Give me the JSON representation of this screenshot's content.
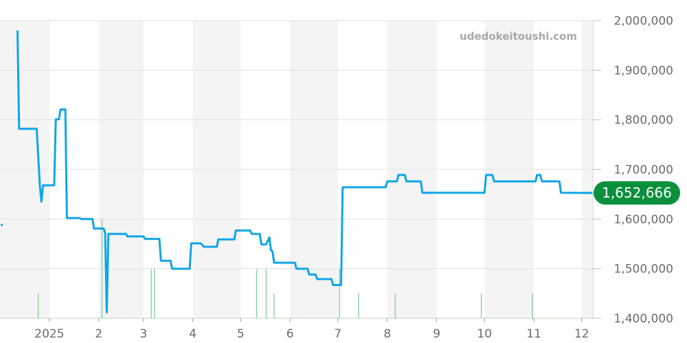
{
  "watermark": "udedokeitoushi.com",
  "chart_data": {
    "type": "line",
    "title": "",
    "xlabel": "",
    "ylabel": "",
    "ylim": [
      1400000,
      2000000
    ],
    "xlim": [
      "2024-12-01",
      "2025-12-08"
    ],
    "grid": true,
    "y_axis_side": "right",
    "y_ticks": [
      "1,400,000",
      "1,500,000",
      "1,600,000",
      "1,700,000",
      "1,800,000",
      "1,900,000",
      "2,000,000"
    ],
    "y_tick_values": [
      1400000,
      1500000,
      1600000,
      1700000,
      1800000,
      1900000,
      2000000
    ],
    "x_ticks": [
      {
        "date": "2025-01-01",
        "label": "2025"
      },
      {
        "date": "2025-02-01",
        "label": "2"
      },
      {
        "date": "2025-03-01",
        "label": "3"
      },
      {
        "date": "2025-04-01",
        "label": "4"
      },
      {
        "date": "2025-05-01",
        "label": "5"
      },
      {
        "date": "2025-06-01",
        "label": "6"
      },
      {
        "date": "2025-07-01",
        "label": "7"
      },
      {
        "date": "2025-08-01",
        "label": "8"
      },
      {
        "date": "2025-09-01",
        "label": "9"
      },
      {
        "date": "2025-10-01",
        "label": "10"
      },
      {
        "date": "2025-11-01",
        "label": "11"
      },
      {
        "date": "2025-12-01",
        "label": "12"
      }
    ],
    "alternating_month_shading": true,
    "colors": {
      "line": "#0ea5e9",
      "volume": "#8fd19e",
      "badge": "#0a8f3c",
      "shade": "#f4f4f4",
      "grid": "#e0e0e0"
    },
    "current_value": 1652666,
    "current_value_label": "1,652,666",
    "isolated_point": {
      "date": "2024-12-01",
      "value": 1588000
    },
    "series": [
      {
        "points": [
          [
            "2024-12-12",
            1980000
          ],
          [
            "2024-12-13",
            1782000
          ],
          [
            "2024-12-24",
            1782000
          ],
          [
            "2024-12-26",
            1668000
          ],
          [
            "2024-12-27",
            1635000
          ],
          [
            "2024-12-27",
            1635000
          ],
          [
            "2024-12-28",
            1668000
          ],
          [
            "2025-01-04",
            1668000
          ],
          [
            "2025-01-05",
            1801000
          ],
          [
            "2025-01-07",
            1801000
          ],
          [
            "2025-01-08",
            1821000
          ],
          [
            "2025-01-11",
            1821000
          ],
          [
            "2025-01-12",
            1602000
          ],
          [
            "2025-01-20",
            1602000
          ],
          [
            "2025-01-21",
            1600000
          ],
          [
            "2025-01-28",
            1600000
          ],
          [
            "2025-01-29",
            1581000
          ],
          [
            "2025-02-04",
            1581000
          ],
          [
            "2025-02-05",
            1572000
          ],
          [
            "2025-02-06",
            1412000
          ],
          [
            "2025-02-07",
            1570000
          ],
          [
            "2025-02-18",
            1570000
          ],
          [
            "2025-02-19",
            1565000
          ],
          [
            "2025-03-01",
            1565000
          ],
          [
            "2025-03-02",
            1560000
          ],
          [
            "2025-03-11",
            1560000
          ],
          [
            "2025-03-12",
            1516000
          ],
          [
            "2025-03-18",
            1516000
          ],
          [
            "2025-03-19",
            1500000
          ],
          [
            "2025-03-30",
            1500000
          ],
          [
            "2025-03-31",
            1551000
          ],
          [
            "2025-04-06",
            1551000
          ],
          [
            "2025-04-08",
            1544000
          ],
          [
            "2025-04-16",
            1544000
          ],
          [
            "2025-04-17",
            1559000
          ],
          [
            "2025-04-27",
            1559000
          ],
          [
            "2025-04-28",
            1577000
          ],
          [
            "2025-05-07",
            1577000
          ],
          [
            "2025-05-08",
            1570000
          ],
          [
            "2025-05-13",
            1570000
          ],
          [
            "2025-05-14",
            1549000
          ],
          [
            "2025-05-17",
            1549000
          ],
          [
            "2025-05-19",
            1563000
          ],
          [
            "2025-05-20",
            1537000
          ],
          [
            "2025-05-21",
            1535000
          ],
          [
            "2025-05-22",
            1512000
          ],
          [
            "2025-06-04",
            1512000
          ],
          [
            "2025-06-05",
            1500000
          ],
          [
            "2025-06-12",
            1500000
          ],
          [
            "2025-06-13",
            1488000
          ],
          [
            "2025-06-17",
            1488000
          ],
          [
            "2025-06-18",
            1479000
          ],
          [
            "2025-06-27",
            1479000
          ],
          [
            "2025-06-28",
            1467000
          ],
          [
            "2025-07-03",
            1467000
          ],
          [
            "2025-07-04",
            1664000
          ],
          [
            "2025-07-31",
            1664000
          ],
          [
            "2025-08-01",
            1676000
          ],
          [
            "2025-08-07",
            1676000
          ],
          [
            "2025-08-08",
            1689000
          ],
          [
            "2025-08-12",
            1689000
          ],
          [
            "2025-08-13",
            1676000
          ],
          [
            "2025-08-22",
            1676000
          ],
          [
            "2025-08-23",
            1653000
          ],
          [
            "2025-10-01",
            1653000
          ],
          [
            "2025-10-02",
            1689000
          ],
          [
            "2025-10-06",
            1689000
          ],
          [
            "2025-10-07",
            1676000
          ],
          [
            "2025-11-02",
            1676000
          ],
          [
            "2025-11-03",
            1689000
          ],
          [
            "2025-11-05",
            1689000
          ],
          [
            "2025-11-06",
            1676000
          ],
          [
            "2025-11-17",
            1676000
          ],
          [
            "2025-11-18",
            1653000
          ],
          [
            "2025-12-08",
            1652666
          ]
        ]
      }
    ],
    "volume_bars": [
      [
        "2024-12-25",
        1
      ],
      [
        "2025-02-03",
        4
      ],
      [
        "2025-03-06",
        2
      ],
      [
        "2025-03-08",
        2
      ],
      [
        "2025-05-11",
        2
      ],
      [
        "2025-05-17",
        2
      ],
      [
        "2025-05-22",
        1
      ],
      [
        "2025-07-02",
        2
      ],
      [
        "2025-07-14",
        1
      ],
      [
        "2025-08-06",
        1
      ],
      [
        "2025-09-29",
        1
      ],
      [
        "2025-10-31",
        1
      ]
    ]
  }
}
